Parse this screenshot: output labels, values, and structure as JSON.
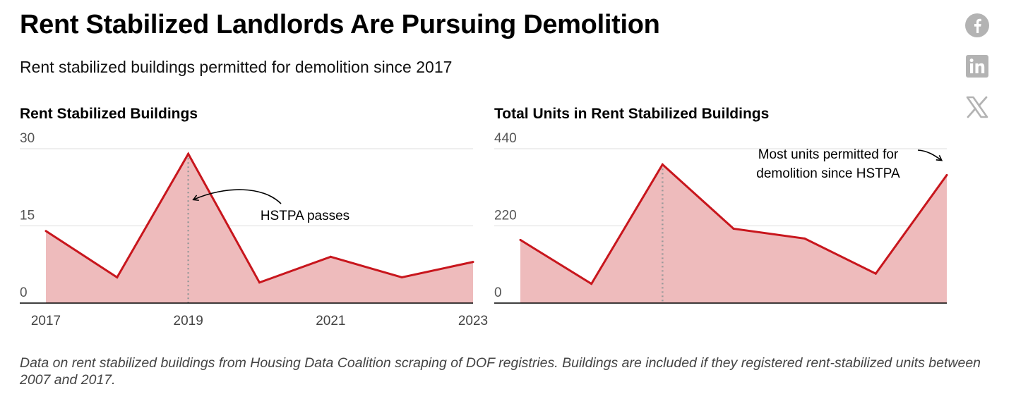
{
  "header": {
    "title": "Rent Stabilized Landlords Are Pursuing Demolition",
    "subtitle": "Rent stabilized buildings permitted for demolition since 2017"
  },
  "share": {
    "icons": [
      "facebook-icon",
      "linkedin-icon",
      "x-icon"
    ],
    "color": "#b3b3b3"
  },
  "colors": {
    "line": "#c8161d",
    "area": "#eebbbc",
    "grid": "#dddddd",
    "baseline": "#000000",
    "marker": "#999999"
  },
  "chart_data": [
    {
      "type": "area",
      "title": "Rent Stabilized Buildings",
      "x": [
        2017,
        2018,
        2019,
        2020,
        2021,
        2022,
        2023
      ],
      "y": [
        14,
        5,
        29,
        4,
        9,
        5,
        8
      ],
      "ylim": [
        0,
        30
      ],
      "yticks": [
        "0",
        "15",
        "30"
      ],
      "xticks": [
        "2017",
        "2019",
        "2021",
        "2023"
      ],
      "xlabel": "",
      "ylabel": "",
      "grid": true,
      "marker_x": 2019,
      "annotation": {
        "text": "HSTPA passes",
        "target_x": 2019
      }
    },
    {
      "type": "area",
      "title": "Total Units in Rent Stabilized Buildings",
      "x": [
        2017,
        2018,
        2019,
        2020,
        2021,
        2022,
        2023
      ],
      "y": [
        180,
        55,
        395,
        212,
        184,
        84,
        365
      ],
      "ylim": [
        0,
        440
      ],
      "yticks": [
        "0",
        "220",
        "440"
      ],
      "xticks": [],
      "xlabel": "",
      "ylabel": "",
      "grid": true,
      "marker_x": 2019,
      "annotation": {
        "text_lines": [
          "Most units permitted for",
          "demolition since HSTPA"
        ],
        "target_x": 2023
      }
    }
  ],
  "footnote": "Data on rent stabilized buildings from Housing Data Coalition scraping of DOF registries. Buildings are included if they registered rent-stabilized units between 2007 and 2017."
}
